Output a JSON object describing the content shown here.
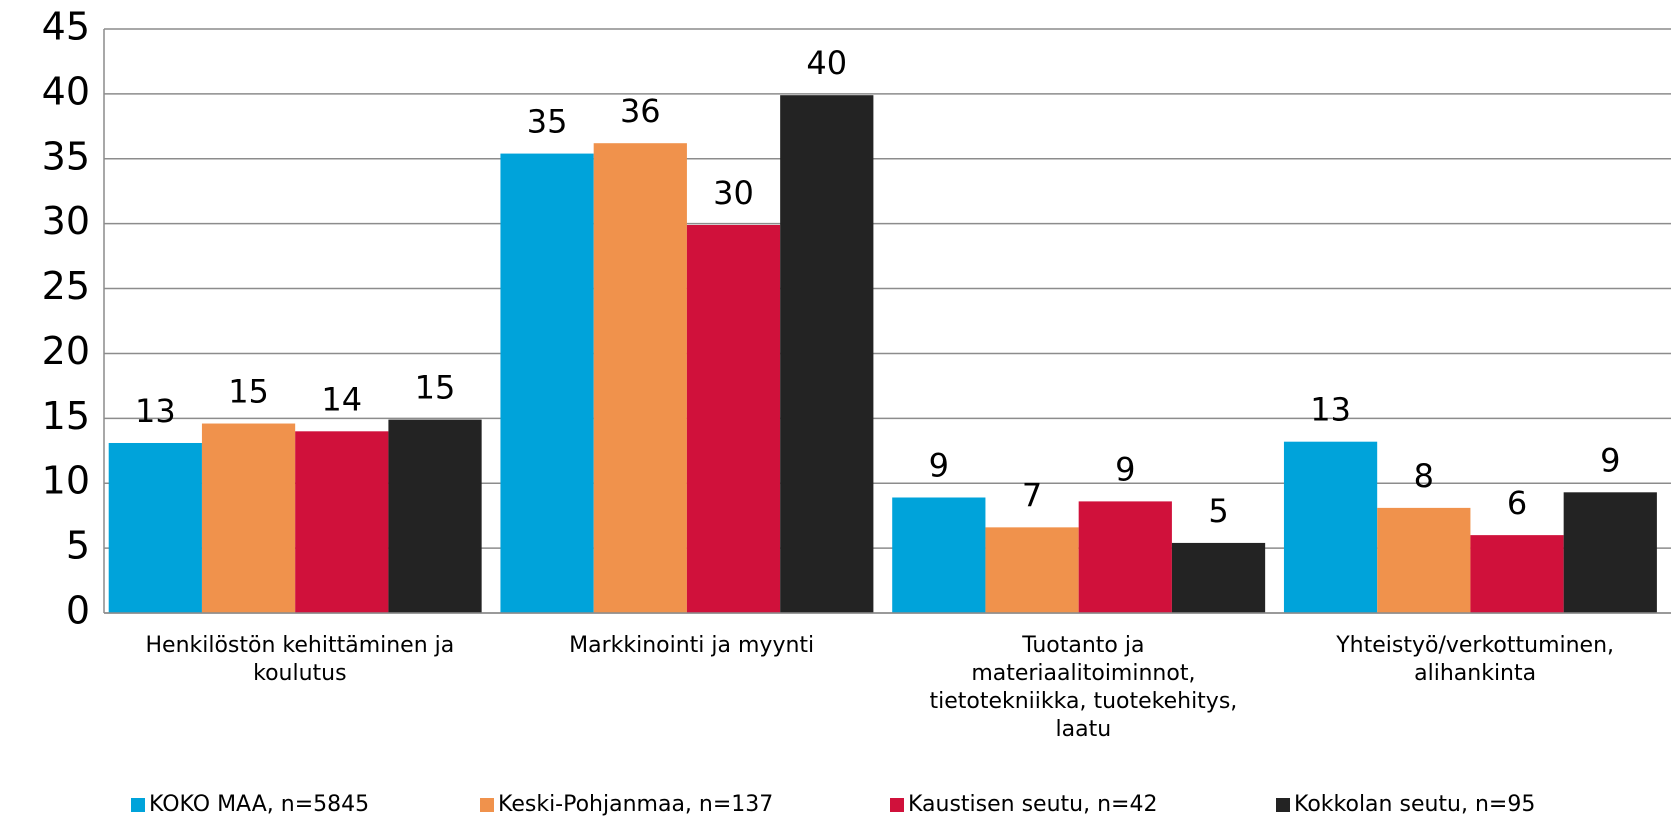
{
  "chart_data": {
    "type": "bar",
    "categories": [
      "Henkilöstön kehittäminen ja koulutus",
      "Markkinointi ja myynti",
      "Tuotanto ja materiaalitoiminnot, tietotekniikka, tuotekehitys, laatu",
      "Yhteistyö/verkottuminen, alihankinta"
    ],
    "series": [
      {
        "name": "KOKO MAA, n=5845",
        "color": "#00a3da",
        "values": [
          13.1,
          35.4,
          8.9,
          13.2
        ],
        "value_labels": [
          "13",
          "35",
          "9",
          "13"
        ]
      },
      {
        "name": "Keski-Pohjanmaa, n=137",
        "color": "#f0924c",
        "values": [
          14.6,
          36.2,
          6.6,
          8.1
        ],
        "value_labels": [
          "15",
          "36",
          "7",
          "8"
        ]
      },
      {
        "name": "Kaustisen seutu, n=42",
        "color": "#d0113b",
        "values": [
          14.0,
          29.9,
          8.6,
          6.0
        ],
        "value_labels": [
          "14",
          "30",
          "9",
          "6"
        ]
      },
      {
        "name": "Kokkolan seutu, n=95",
        "color": "#232323",
        "values": [
          14.9,
          39.9,
          5.4,
          9.3
        ],
        "value_labels": [
          "15",
          "40",
          "5",
          "9"
        ]
      }
    ],
    "ylim": [
      0,
      45
    ],
    "yticks": [
      0,
      5,
      10,
      15,
      20,
      25,
      30,
      35,
      40,
      45
    ],
    "grid": true,
    "legend": "bottom"
  }
}
